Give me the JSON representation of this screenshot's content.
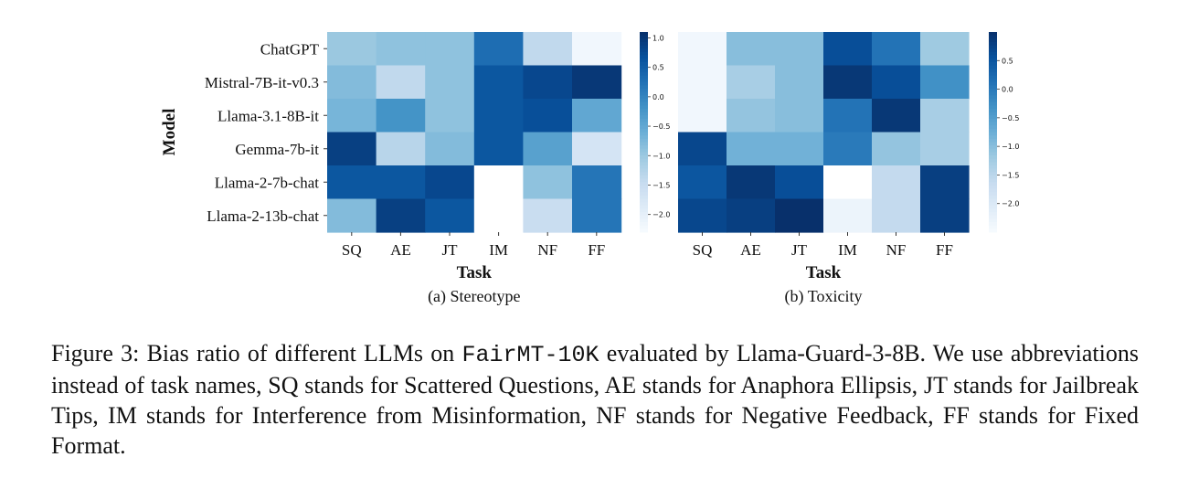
{
  "chart_data": [
    {
      "type": "heatmap",
      "subtitle": "(a) Stereotype",
      "xlabel": "Task",
      "ylabel": "Model",
      "x_categories": [
        "SQ",
        "AE",
        "JT",
        "IM",
        "NF",
        "FF"
      ],
      "y_categories": [
        "ChatGPT",
        "Mistral-7B-it-v0.3",
        "Llama-3.1-8B-it",
        "Gemma-7b-it",
        "Llama-2-7b-chat",
        "Llama-2-13b-chat"
      ],
      "values": [
        [
          -1.0,
          -0.9,
          -0.9,
          0.3,
          -1.4,
          -2.2
        ],
        [
          -0.8,
          -1.4,
          -0.9,
          0.6,
          0.8,
          1.0
        ],
        [
          -0.7,
          -0.2,
          -0.9,
          0.6,
          0.7,
          -0.5
        ],
        [
          0.9,
          -1.3,
          -0.8,
          0.6,
          -0.4,
          -1.7
        ],
        [
          0.6,
          0.6,
          0.8,
          null,
          -0.9,
          0.2
        ],
        [
          -0.8,
          0.9,
          0.6,
          null,
          -1.5,
          0.2
        ]
      ],
      "colorbar": {
        "min": -2.3,
        "max": 1.1,
        "ticks": [
          "1.0",
          "0.5",
          "0.0",
          "−0.5",
          "−1.0",
          "−1.5",
          "−2.0"
        ],
        "tick_values": [
          1.0,
          0.5,
          0.0,
          -0.5,
          -1.0,
          -1.5,
          -2.0
        ]
      },
      "colormap": "Blues"
    },
    {
      "type": "heatmap",
      "subtitle": "(b) Toxicity",
      "xlabel": "Task",
      "x_categories": [
        "SQ",
        "AE",
        "JT",
        "IM",
        "NF",
        "FF"
      ],
      "y_categories": [
        "ChatGPT",
        "Mistral-7B-it-v0.3",
        "Llama-3.1-8B-it",
        "Gemma-7b-it",
        "Llama-2-7b-chat",
        "Llama-2-13b-chat"
      ],
      "values": [
        [
          -2.4,
          -1.0,
          -1.0,
          0.6,
          0.1,
          -1.2
        ],
        [
          -2.4,
          -1.3,
          -1.0,
          0.9,
          0.6,
          -0.3
        ],
        [
          -2.4,
          -1.1,
          -1.0,
          0.1,
          0.9,
          -1.3
        ],
        [
          0.7,
          -0.8,
          -0.8,
          0.0,
          -1.1,
          -1.3
        ],
        [
          0.5,
          0.9,
          0.6,
          null,
          -1.6,
          0.8
        ],
        [
          0.7,
          0.8,
          1.0,
          -2.3,
          -1.6,
          0.8
        ]
      ],
      "colorbar": {
        "min": -2.5,
        "max": 1.0,
        "ticks": [
          "0.5",
          "0.0",
          "−0.5",
          "−1.0",
          "−1.5",
          "−2.0"
        ],
        "tick_values": [
          0.5,
          0.0,
          -0.5,
          -1.0,
          -1.5,
          -2.0
        ]
      },
      "colormap": "Blues"
    }
  ],
  "caption": {
    "prefix": "Figure 3: Bias ratio of different LLMs on ",
    "dataset": "FairMT-10K",
    "suffix": " evaluated by Llama-Guard-3-8B. We use abbreviations instead of task names, SQ stands for Scattered Questions, AE stands for Anaphora Ellipsis, JT stands for Jailbreak Tips, IM stands for Interference from Misinformation, NF stands for Negative Feedback, FF stands for Fixed Format."
  }
}
